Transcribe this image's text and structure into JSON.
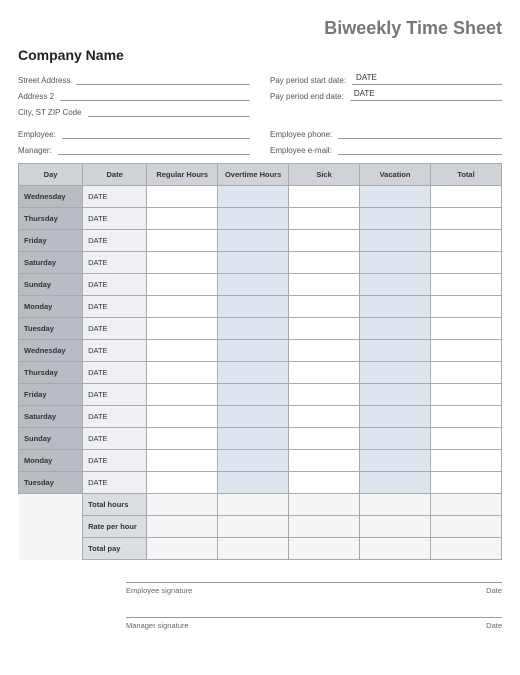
{
  "title": "Biweekly Time Sheet",
  "company_name": "Company Name",
  "labels": {
    "street_address": "Street Address",
    "address2": "Address 2",
    "city_st_zip": "City, ST  ZIP Code",
    "pay_period_start": "Pay period start date:",
    "pay_period_end": "Pay period end date:",
    "employee": "Employee:",
    "manager": "Manager:",
    "employee_phone": "Employee phone:",
    "employee_email": "Employee e-mail:",
    "emp_sig": "Employee signature",
    "mgr_sig": "Manager signature",
    "date": "Date"
  },
  "values": {
    "pay_period_start": "DATE",
    "pay_period_end": "DATE"
  },
  "columns": {
    "day": "Day",
    "date": "Date",
    "regular": "Regular Hours",
    "overtime": "Overtime Hours",
    "sick": "Sick",
    "vacation": "Vacation",
    "total": "Total"
  },
  "rows": [
    {
      "day": "Wednesday",
      "date": "DATE"
    },
    {
      "day": "Thursday",
      "date": "DATE"
    },
    {
      "day": "Friday",
      "date": "DATE"
    },
    {
      "day": "Saturday",
      "date": "DATE"
    },
    {
      "day": "Sunday",
      "date": "DATE"
    },
    {
      "day": "Monday",
      "date": "DATE"
    },
    {
      "day": "Tuesday",
      "date": "DATE"
    },
    {
      "day": "Wednesday",
      "date": "DATE"
    },
    {
      "day": "Thursday",
      "date": "DATE"
    },
    {
      "day": "Friday",
      "date": "DATE"
    },
    {
      "day": "Saturday",
      "date": "DATE"
    },
    {
      "day": "Sunday",
      "date": "DATE"
    },
    {
      "day": "Monday",
      "date": "DATE"
    },
    {
      "day": "Tuesday",
      "date": "DATE"
    }
  ],
  "summary": {
    "total_hours": "Total hours",
    "rate_per_hour": "Rate per hour",
    "total_pay": "Total pay"
  },
  "colors": {
    "header_bg": "#cfd3d8",
    "day_bg": "#b8bdc4",
    "date_bg": "#eef0f3",
    "accent_bg": "#dde5ef",
    "sum_label_bg": "#dadde2",
    "dark_total": "#8d9299",
    "border": "#aaaaaa",
    "title_color": "#777777"
  }
}
